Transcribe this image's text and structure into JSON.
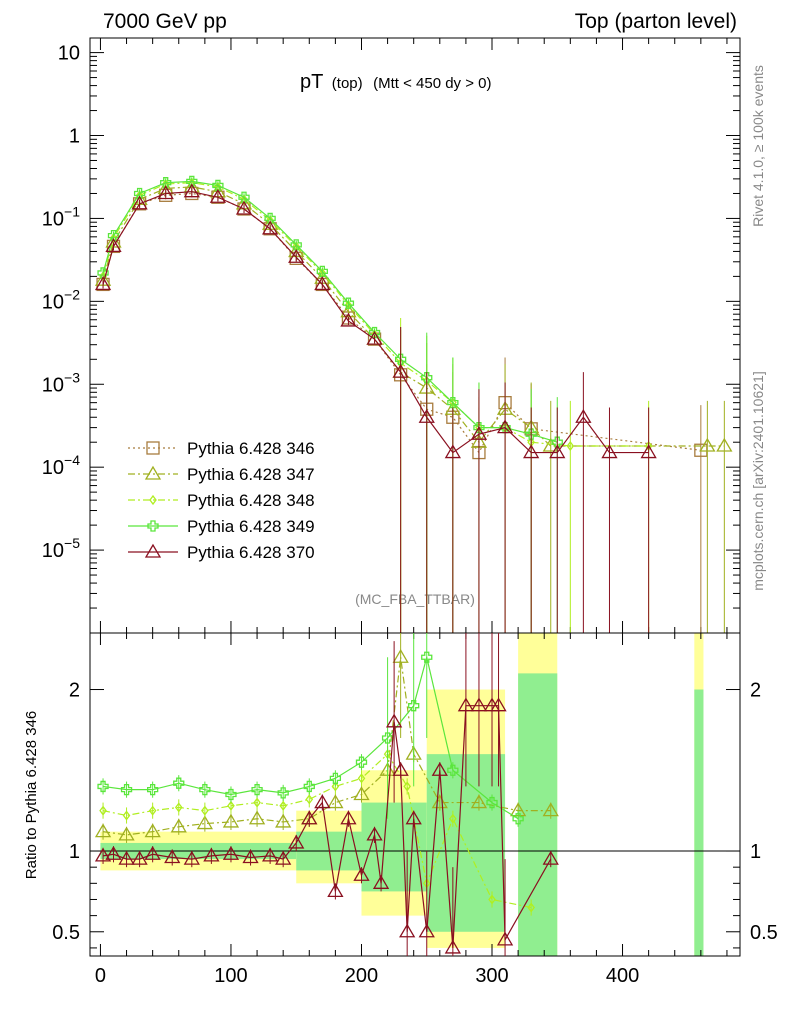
{
  "header": {
    "energy": "7000 GeV pp",
    "process": "Top (parton level)"
  },
  "plot_title": {
    "main": "pT",
    "sub": "(top)",
    "cut": "(Mtt < 450 dy > 0)"
  },
  "side_labels": {
    "rivet": "Rivet 4.1.0, ≥ 100k events",
    "mcplots": "mcplots.cern.ch [arXiv:2401.10621]"
  },
  "analysis_tag": "(MC_FBA_TTBAR)",
  "ratio_ylabel": "Ratio to Pythia 6.428 346",
  "colors": {
    "s346": "#a87c3e",
    "s347": "#a0b020",
    "s348": "#b0ee20",
    "s349": "#5ae63c",
    "s370": "#8a1020",
    "band_yellow": "#ffff99",
    "band_green": "#90ee90"
  },
  "chart_data": {
    "type": "line",
    "main": {
      "yscale": "log",
      "ylim": [
        1e-06,
        15
      ],
      "xlim": [
        -8,
        490
      ],
      "yticks": [
        {
          "v": 10,
          "mant": "10",
          "exp": ""
        },
        {
          "v": 1,
          "mant": "1",
          "exp": ""
        },
        {
          "v": 0.1,
          "mant": "10",
          "exp": "−1"
        },
        {
          "v": 0.01,
          "mant": "10",
          "exp": "−2"
        },
        {
          "v": 0.001,
          "mant": "10",
          "exp": "−3"
        },
        {
          "v": 0.0001,
          "mant": "10",
          "exp": "−4"
        },
        {
          "v": 1e-05,
          "mant": "10",
          "exp": "−5"
        }
      ],
      "series": [
        {
          "name": "Pythia 6.428 346",
          "key": "s346",
          "line": "dotted",
          "marker": "square",
          "scale": 1.0,
          "x": [
            2,
            10,
            30,
            50,
            70,
            90,
            110,
            130,
            150,
            170,
            190,
            210,
            230,
            250,
            270,
            290,
            310,
            330,
            460
          ],
          "y": [
            0.016,
            0.046,
            0.15,
            0.19,
            0.2,
            0.18,
            0.13,
            0.075,
            0.033,
            0.016,
            0.0063,
            0.0035,
            0.0013,
            0.0005,
            0.0004,
            0.00015,
            0.0006,
            0.00029,
            0.00016
          ]
        },
        {
          "name": "Pythia 6.428 347",
          "key": "s347",
          "line": "dashdot",
          "marker": "triangle",
          "scale": 1.1,
          "x": [
            2,
            10,
            30,
            50,
            70,
            90,
            110,
            130,
            150,
            170,
            190,
            210,
            230,
            250,
            270,
            290,
            310,
            330,
            345,
            465,
            478
          ],
          "y": [
            0.018,
            0.052,
            0.17,
            0.23,
            0.24,
            0.21,
            0.15,
            0.085,
            0.04,
            0.019,
            0.0075,
            0.0035,
            0.0014,
            0.0009,
            0.0005,
            0.0002,
            0.0005,
            0.0003,
            0.00018,
            0.00018,
            0.00018
          ]
        },
        {
          "name": "Pythia 6.428 348",
          "key": "s348",
          "line": "dashdot",
          "marker": "diamond",
          "scale": 1.25,
          "x": [
            2,
            10,
            30,
            50,
            70,
            90,
            110,
            130,
            150,
            170,
            190,
            210,
            230,
            250,
            270,
            290,
            310,
            330,
            360,
            420
          ],
          "y": [
            0.02,
            0.058,
            0.19,
            0.26,
            0.27,
            0.24,
            0.17,
            0.095,
            0.046,
            0.022,
            0.009,
            0.004,
            0.0018,
            0.0011,
            0.0006,
            0.0003,
            0.0003,
            0.0002,
            0.00018,
            0.00018
          ]
        },
        {
          "name": "Pythia 6.428 349",
          "key": "s349",
          "line": "solid",
          "marker": "cross",
          "scale": 1.35,
          "x": [
            2,
            10,
            30,
            50,
            70,
            90,
            110,
            130,
            150,
            170,
            190,
            210,
            230,
            250,
            270,
            290,
            310,
            330,
            350
          ],
          "y": [
            0.022,
            0.062,
            0.2,
            0.27,
            0.28,
            0.25,
            0.18,
            0.1,
            0.048,
            0.023,
            0.0095,
            0.0042,
            0.002,
            0.0012,
            0.0006,
            0.0003,
            0.0003,
            0.00025,
            0.0002
          ]
        },
        {
          "name": "Pythia 6.428 370",
          "key": "s370",
          "line": "solid",
          "marker": "triangle",
          "scale": 0.95,
          "x": [
            2,
            10,
            30,
            50,
            70,
            90,
            110,
            130,
            150,
            170,
            190,
            210,
            230,
            250,
            270,
            290,
            310,
            330,
            350,
            370,
            390,
            420
          ],
          "y": [
            0.016,
            0.046,
            0.15,
            0.2,
            0.21,
            0.18,
            0.13,
            0.075,
            0.034,
            0.016,
            0.0058,
            0.0035,
            0.0014,
            0.0004,
            0.00015,
            0.00025,
            0.0003,
            0.00015,
            0.00015,
            0.0004,
            0.00015,
            0.00015
          ]
        }
      ]
    },
    "ratio": {
      "ylim": [
        0.35,
        2.35
      ],
      "ytick_values": [
        0.5,
        1,
        2
      ],
      "ytick_labels": [
        "0.5",
        "1",
        "2"
      ],
      "xtick_values": [
        0,
        100,
        200,
        300,
        400
      ],
      "xtick_labels": [
        "0",
        "100",
        "200",
        "300",
        "400"
      ],
      "bands": [
        {
          "x0": 0,
          "x1": 150,
          "lo_y": 0.88,
          "hi_y": 1.12,
          "lo_g": 0.95,
          "hi_g": 1.05
        },
        {
          "x0": 150,
          "x1": 200,
          "lo_y": 0.8,
          "hi_y": 1.25,
          "lo_g": 0.88,
          "hi_g": 1.12
        },
        {
          "x0": 200,
          "x1": 250,
          "lo_y": 0.6,
          "hi_y": 1.5,
          "lo_g": 0.75,
          "hi_g": 1.3
        },
        {
          "x0": 250,
          "x1": 310,
          "lo_y": 0.4,
          "hi_y": 2.0,
          "lo_g": 0.5,
          "hi_g": 1.6
        },
        {
          "x0": 320,
          "x1": 350,
          "lo_y": 0.35,
          "hi_y": 2.35,
          "lo_g": 0.35,
          "hi_g": 2.1
        },
        {
          "x0": 455,
          "x1": 462,
          "lo_y": 0.35,
          "hi_y": 2.35,
          "lo_g": 0.35,
          "hi_g": 2.0
        }
      ],
      "series": [
        {
          "key": "s347",
          "line": "dashdot",
          "marker": "triangle",
          "x": [
            2,
            20,
            40,
            60,
            80,
            100,
            120,
            140,
            160,
            180,
            200,
            220,
            230,
            240,
            260,
            290,
            320,
            345
          ],
          "y": [
            1.12,
            1.1,
            1.12,
            1.15,
            1.17,
            1.18,
            1.2,
            1.18,
            1.2,
            1.3,
            1.35,
            1.5,
            2.2,
            1.6,
            1.3,
            1.3,
            1.25,
            1.25
          ]
        },
        {
          "key": "s348",
          "line": "dashdot",
          "marker": "diamond",
          "x": [
            2,
            20,
            40,
            60,
            80,
            100,
            120,
            140,
            160,
            180,
            200,
            220,
            235,
            250,
            270,
            300,
            330
          ],
          "y": [
            1.25,
            1.22,
            1.25,
            1.27,
            1.25,
            1.28,
            1.3,
            1.28,
            1.32,
            1.4,
            1.45,
            1.6,
            1.4,
            0.8,
            1.2,
            0.7,
            0.65
          ]
        },
        {
          "key": "s349",
          "line": "solid",
          "marker": "cross",
          "x": [
            2,
            20,
            40,
            60,
            80,
            100,
            120,
            140,
            160,
            180,
            200,
            220,
            240,
            250,
            270,
            300,
            320
          ],
          "y": [
            1.4,
            1.38,
            1.38,
            1.42,
            1.38,
            1.35,
            1.38,
            1.36,
            1.4,
            1.45,
            1.55,
            1.7,
            1.9,
            2.2,
            1.5,
            1.3,
            1.2
          ]
        },
        {
          "key": "s370",
          "line": "solid",
          "marker": "triangle",
          "x": [
            2,
            10,
            20,
            30,
            40,
            55,
            70,
            85,
            100,
            115,
            130,
            140,
            150,
            160,
            170,
            180,
            190,
            200,
            210,
            215,
            225,
            230,
            235,
            240,
            250,
            260,
            270,
            280,
            290,
            300,
            305,
            310,
            345
          ],
          "y": [
            0.97,
            0.98,
            0.95,
            0.95,
            0.98,
            0.96,
            0.95,
            0.97,
            0.98,
            0.96,
            0.97,
            0.95,
            1.05,
            1.2,
            1.3,
            0.75,
            1.2,
            0.85,
            1.1,
            0.8,
            1.8,
            1.5,
            0.5,
            1.2,
            0.5,
            1.5,
            0.4,
            1.9,
            1.9,
            1.9,
            1.9,
            0.45,
            0.95
          ]
        }
      ]
    }
  }
}
